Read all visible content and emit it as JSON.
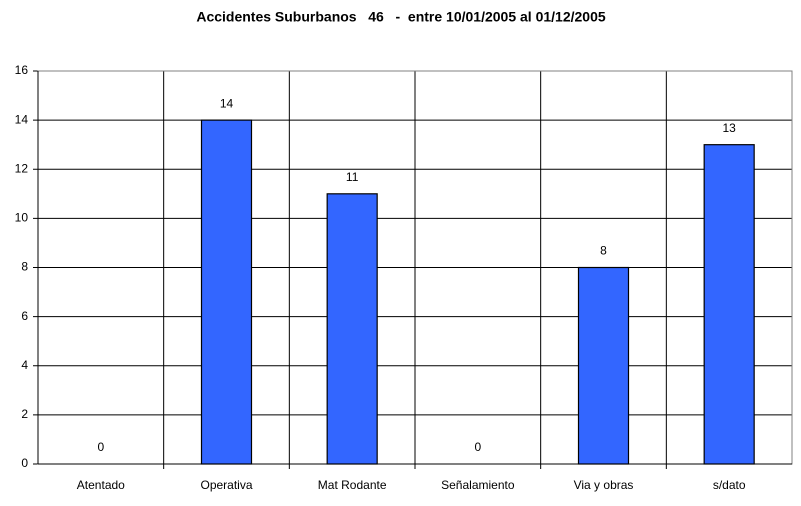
{
  "chart_data": {
    "type": "bar",
    "title": "Accidentes Suburbanos   46   -  entre 10/01/2005 al 01/12/2005",
    "categories": [
      "Atentado",
      "Operativa",
      "Mat Rodante",
      "Señalamiento",
      "Via y obras",
      "s/dato"
    ],
    "values": [
      0,
      14,
      11,
      0,
      8,
      13
    ],
    "color": "#3366ff",
    "ylim": [
      0,
      16
    ],
    "yticks": [
      0,
      2,
      4,
      6,
      8,
      10,
      12,
      14,
      16
    ],
    "grid": true
  }
}
